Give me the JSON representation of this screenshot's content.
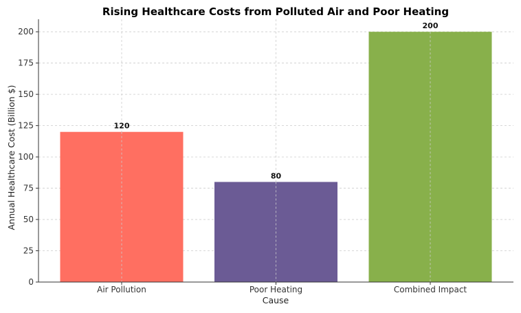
{
  "chart_data": {
    "type": "bar",
    "title": "Rising Healthcare Costs from Polluted Air and Poor Heating",
    "xlabel": "Cause",
    "ylabel": "Annual Healthcare Cost (Billion $)",
    "categories": [
      "Air Pollution",
      "Poor Heating",
      "Combined Impact"
    ],
    "values": [
      120,
      80,
      200
    ],
    "data_labels": [
      "120",
      "80",
      "200"
    ],
    "colors": [
      "#ff6f61",
      "#6b5b95",
      "#88b04b"
    ],
    "ylim": [
      0,
      210
    ],
    "yticks": [
      0,
      25,
      50,
      75,
      100,
      125,
      150,
      175,
      200
    ],
    "grid": true
  }
}
